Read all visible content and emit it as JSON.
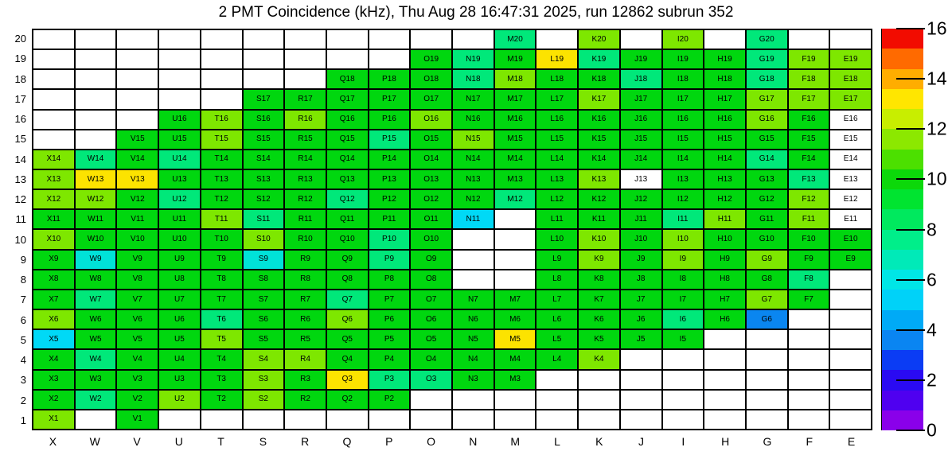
{
  "chart_data": {
    "type": "heatmap",
    "title": "2 PMT Coincidence (kHz), Thu Aug 28 16:47:31 2025, run 12862 subrun 352",
    "columns": [
      "X",
      "W",
      "V",
      "U",
      "T",
      "S",
      "R",
      "Q",
      "P",
      "O",
      "N",
      "M",
      "L",
      "K",
      "J",
      "I",
      "H",
      "G",
      "F",
      "E"
    ],
    "rows": [
      20,
      19,
      18,
      17,
      16,
      15,
      14,
      13,
      12,
      11,
      10,
      9,
      8,
      7,
      6,
      5,
      4,
      3,
      2,
      1
    ],
    "cell_label_rule": "column letter + row number (e.g. X14)",
    "color_classes": {
      "G": "#00d70f",
      "C": "#7ee700",
      "Y": "#fce300",
      "S": "#00e87a",
      "Q": "#00e2d8",
      "A": "#00d9f6",
      "B": "#0a86f0",
      "w": "#ffffff",
      ".": "#ffffff"
    },
    "class_values_approx_khz": {
      "G": 10,
      "C": 11.5,
      "Y": 13,
      "S": 8,
      "Q": 6,
      "A": 5,
      "B": 4,
      "w": "no data (white cell with label)",
      ".": "no module (blank cell)"
    },
    "grid": [
      "...........S.C.C.S..",
      ".........GSGYSGGGSCC",
      ".......GGGSCGGSGGSCC",
      ".....GGGGGGGGCGGGCCC",
      "...GCGCGGCGGGGGGGCGw",
      "..GGCGGGSGCGGGGGGGGw",
      "CSGSGGGGGGGGGGGGGSGw",
      "CYYGGGGGGGGGGCwGGGSw",
      "CCGSGGGSGGGSGGGGGGCw",
      "GGGGCSGGGGA.GGGSCGCw",
      "CGGGGCGGSG..GCGCGGGG",
      "GQGGGQGGSG..GCGCGCGG",
      "GGGGGGGGGG..GGGGGGS.",
      "GSGGGGGSGGGGGGGGGCG.",
      "CGGGSGGCGGGGGGGSGB..",
      "AGGGCGGGGGGYGGGG....",
      "GSGGGCCGGGGGGC......",
      "GGGGGCGYSSGG........",
      "GSGCGCGGG...........",
      "C.G................."
    ],
    "colorbar": {
      "min": 0,
      "max": 16,
      "tick_values": [
        0,
        2,
        4,
        6,
        8,
        10,
        12,
        14,
        16
      ],
      "tick_labels": [
        "0",
        "2",
        "4",
        "6",
        "8",
        "10",
        "12",
        "14",
        "16"
      ],
      "position": "right",
      "palette_bottom_to_top": [
        "#8a00ea",
        "#4f00f0",
        "#2a0af2",
        "#0b3cf4",
        "#0a85f2",
        "#00aaf6",
        "#00d2f8",
        "#00e6e6",
        "#00eab8",
        "#00ee8a",
        "#00e95e",
        "#00e430",
        "#0cd80a",
        "#4ce000",
        "#8ce800",
        "#c8ee00",
        "#ffe600",
        "#ffad00",
        "#ff6a00",
        "#f20c00"
      ]
    }
  }
}
